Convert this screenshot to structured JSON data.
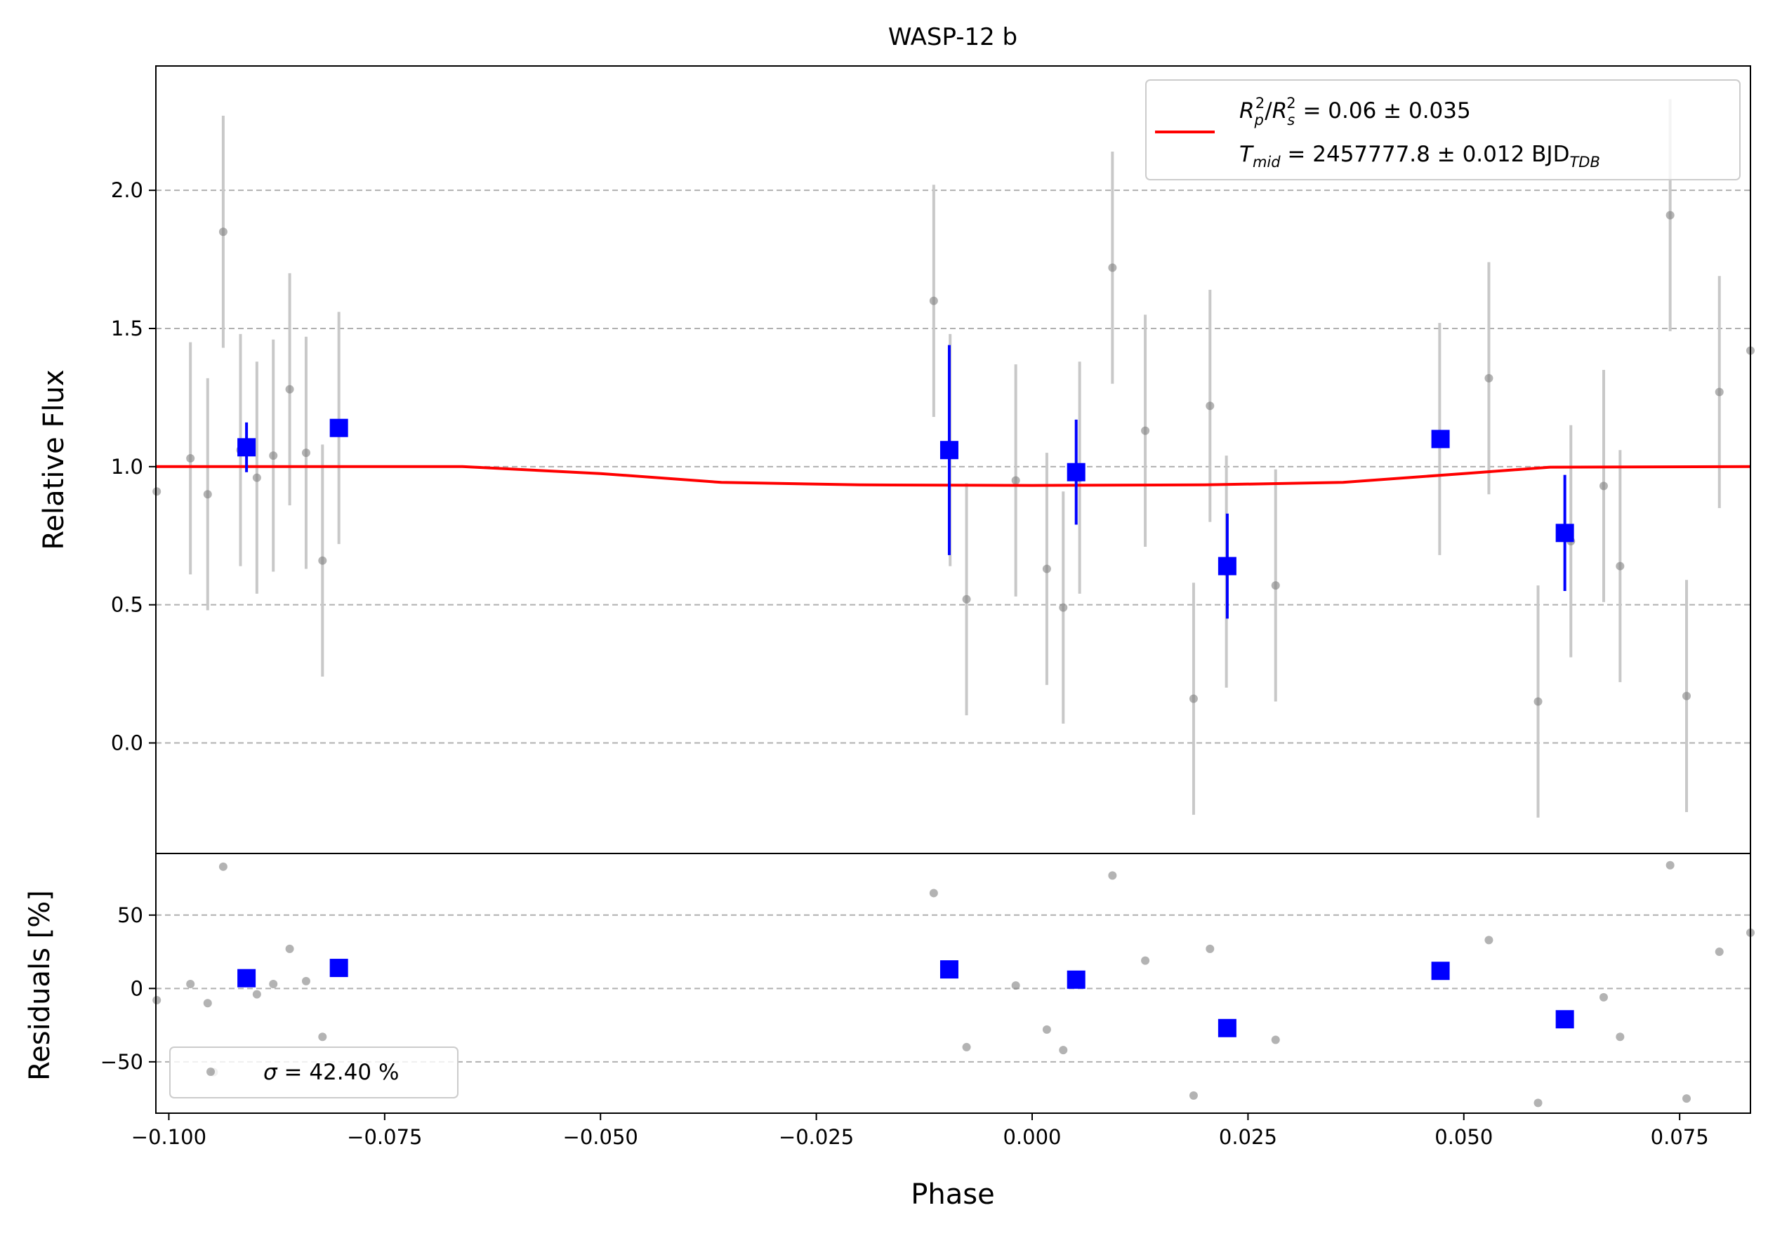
{
  "colors": {
    "raw": "#808080",
    "raw_err": "#c8c8c8",
    "binned": "#0000ff",
    "model": "#ff0000",
    "grid": "#b0b0b0"
  },
  "chart_data": [
    {
      "type": "scatter",
      "title": "WASP-12 b",
      "xlabel": "",
      "ylabel": "Relative Flux",
      "xlim": [
        -0.1015,
        0.0832
      ],
      "ylim": [
        -0.4,
        2.45
      ],
      "yticks": [
        0.0,
        0.5,
        1.0,
        1.5,
        2.0
      ],
      "ytick_labels": [
        "0.0",
        "0.5",
        "1.0",
        "1.5",
        "2.0"
      ],
      "grid": "horizontal dashed",
      "legend": {
        "placement": "top-right",
        "r_label": "R_p²/R_s² = 0.06 ± 0.035",
        "t_label": "T_mid = 2457777.8 ± 0.012 BJD_TDB",
        "r_parts": {
          "a": "R",
          "a_sub": "p",
          "a_sup": "2",
          "sep": "/",
          "b": "R",
          "b_sub": "s",
          "b_sup": "2",
          "tail": " = 0.06 ± 0.035"
        },
        "t_parts": {
          "name": "T",
          "name_sub": "mid",
          "mid": " = 2457777.8 ± 0.012 BJD",
          "unit_sub": "TDB"
        }
      },
      "series": [
        {
          "role": "raw",
          "points": [
            {
              "x": -0.1014,
              "y": 0.91,
              "err": 0.0
            },
            {
              "x": -0.0975,
              "y": 1.03,
              "err": 0.42
            },
            {
              "x": -0.0955,
              "y": 0.9,
              "err": 0.42
            },
            {
              "x": -0.0937,
              "y": 1.85,
              "err": 0.42
            },
            {
              "x": -0.0917,
              "y": 1.06,
              "err": 0.42
            },
            {
              "x": -0.0898,
              "y": 0.96,
              "err": 0.42
            },
            {
              "x": -0.0879,
              "y": 1.04,
              "err": 0.42
            },
            {
              "x": -0.086,
              "y": 1.28,
              "err": 0.42
            },
            {
              "x": -0.0841,
              "y": 1.05,
              "err": 0.42
            },
            {
              "x": -0.0822,
              "y": 0.66,
              "err": 0.42
            },
            {
              "x": -0.0803,
              "y": 1.14,
              "err": 0.42
            },
            {
              "x": -0.0114,
              "y": 1.6,
              "err": 0.42
            },
            {
              "x": -0.0095,
              "y": 1.06,
              "err": 0.42
            },
            {
              "x": -0.0076,
              "y": 0.52,
              "err": 0.42
            },
            {
              "x": -0.0019,
              "y": 0.95,
              "err": 0.42
            },
            {
              "x": 0.0017,
              "y": 0.63,
              "err": 0.42
            },
            {
              "x": 0.0036,
              "y": 0.49,
              "err": 0.42
            },
            {
              "x": 0.0055,
              "y": 0.96,
              "err": 0.42
            },
            {
              "x": 0.0093,
              "y": 1.72,
              "err": 0.42
            },
            {
              "x": 0.0131,
              "y": 1.13,
              "err": 0.42
            },
            {
              "x": 0.0187,
              "y": 0.16,
              "err": 0.42
            },
            {
              "x": 0.0206,
              "y": 1.22,
              "err": 0.42
            },
            {
              "x": 0.0225,
              "y": 0.62,
              "err": 0.42
            },
            {
              "x": 0.0282,
              "y": 0.57,
              "err": 0.42
            },
            {
              "x": 0.0472,
              "y": 1.1,
              "err": 0.42
            },
            {
              "x": 0.0529,
              "y": 1.32,
              "err": 0.42
            },
            {
              "x": 0.0586,
              "y": 0.15,
              "err": 0.42
            },
            {
              "x": 0.0624,
              "y": 0.73,
              "err": 0.42
            },
            {
              "x": 0.0662,
              "y": 0.93,
              "err": 0.42
            },
            {
              "x": 0.0681,
              "y": 0.64,
              "err": 0.42
            },
            {
              "x": 0.0739,
              "y": 1.91,
              "err": 0.42
            },
            {
              "x": 0.0758,
              "y": 0.17,
              "err": 0.42
            },
            {
              "x": 0.0796,
              "y": 1.27,
              "err": 0.42
            },
            {
              "x": 0.0832,
              "y": 1.42,
              "err": 0.0
            }
          ]
        },
        {
          "role": "binned",
          "points": [
            {
              "x": -0.091,
              "y": 1.07,
              "err": 0.09
            },
            {
              "x": -0.0803,
              "y": 1.14,
              "err": 0.0
            },
            {
              "x": -0.0096,
              "y": 1.06,
              "err": 0.38
            },
            {
              "x": 0.0051,
              "y": 0.98,
              "err": 0.19
            },
            {
              "x": 0.0226,
              "y": 0.64,
              "err": 0.19
            },
            {
              "x": 0.0473,
              "y": 1.1,
              "err": 0.0
            },
            {
              "x": 0.0617,
              "y": 0.76,
              "err": 0.21
            }
          ]
        },
        {
          "role": "model",
          "points": [
            {
              "x": -0.1015,
              "y": 1.0
            },
            {
              "x": -0.066,
              "y": 1.0
            },
            {
              "x": -0.05,
              "y": 0.975
            },
            {
              "x": -0.036,
              "y": 0.943
            },
            {
              "x": -0.02,
              "y": 0.934
            },
            {
              "x": 0.0,
              "y": 0.932
            },
            {
              "x": 0.02,
              "y": 0.934
            },
            {
              "x": 0.036,
              "y": 0.943
            },
            {
              "x": 0.05,
              "y": 0.975
            },
            {
              "x": 0.06,
              "y": 0.998
            },
            {
              "x": 0.0832,
              "y": 1.0
            }
          ]
        }
      ]
    },
    {
      "type": "scatter",
      "title": "",
      "xlabel": "Phase",
      "ylabel": "Residuals [%]",
      "xlim": [
        -0.1015,
        0.0832
      ],
      "ylim": [
        -85,
        92
      ],
      "xticks": [
        -0.1,
        -0.075,
        -0.05,
        -0.025,
        0.0,
        0.025,
        0.05,
        0.075
      ],
      "xtick_labels": [
        "−0.100",
        "−0.075",
        "−0.050",
        "−0.025",
        "0.000",
        "0.025",
        "0.050",
        "0.075"
      ],
      "yticks": [
        -50,
        0,
        50
      ],
      "ytick_labels": [
        "−50",
        "0",
        "50"
      ],
      "grid": "horizontal dashed",
      "legend": {
        "placement": "lower-left",
        "sigma_symbol": "σ",
        "sigma_text": " = 42.40 %"
      },
      "series": [
        {
          "role": "raw",
          "points": [
            {
              "x": -0.1014,
              "y": -8
            },
            {
              "x": -0.0975,
              "y": 3
            },
            {
              "x": -0.0955,
              "y": -10
            },
            {
              "x": -0.0948,
              "y": -57
            },
            {
              "x": -0.0937,
              "y": 83
            },
            {
              "x": -0.0898,
              "y": -4
            },
            {
              "x": -0.0879,
              "y": 3
            },
            {
              "x": -0.086,
              "y": 27
            },
            {
              "x": -0.0841,
              "y": 5
            },
            {
              "x": -0.0822,
              "y": -33
            },
            {
              "x": -0.0114,
              "y": 65
            },
            {
              "x": -0.0076,
              "y": -40
            },
            {
              "x": -0.0019,
              "y": 2
            },
            {
              "x": 0.0017,
              "y": -28
            },
            {
              "x": 0.0036,
              "y": -42
            },
            {
              "x": 0.0093,
              "y": 77
            },
            {
              "x": 0.0131,
              "y": 19
            },
            {
              "x": 0.0187,
              "y": -73
            },
            {
              "x": 0.0206,
              "y": 27
            },
            {
              "x": 0.0282,
              "y": -35
            },
            {
              "x": 0.0529,
              "y": 33
            },
            {
              "x": 0.0586,
              "y": -78
            },
            {
              "x": 0.0662,
              "y": -6
            },
            {
              "x": 0.0681,
              "y": -33
            },
            {
              "x": 0.0739,
              "y": 84
            },
            {
              "x": 0.0758,
              "y": -75
            },
            {
              "x": 0.0796,
              "y": 25
            },
            {
              "x": 0.0832,
              "y": 38
            }
          ]
        },
        {
          "role": "binned",
          "points": [
            {
              "x": -0.091,
              "y": 7
            },
            {
              "x": -0.0803,
              "y": 14
            },
            {
              "x": -0.0096,
              "y": 13
            },
            {
              "x": 0.0051,
              "y": 6
            },
            {
              "x": 0.0226,
              "y": -27
            },
            {
              "x": 0.0473,
              "y": 12
            },
            {
              "x": 0.0617,
              "y": -21
            }
          ]
        }
      ]
    }
  ]
}
